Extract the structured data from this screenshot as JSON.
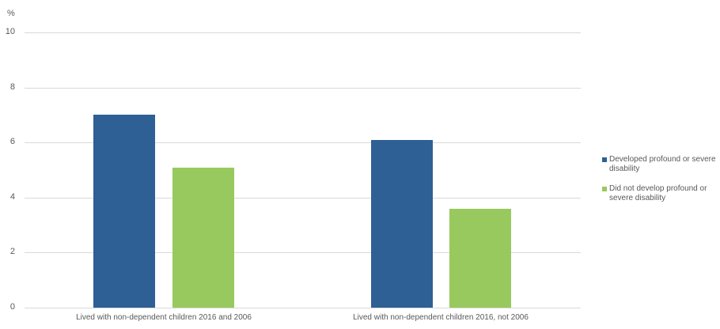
{
  "chart_data": {
    "type": "bar",
    "title": "",
    "xlabel": "",
    "ylabel": "%",
    "ylim": [
      0,
      10
    ],
    "yticks": [
      0,
      2,
      4,
      6,
      8,
      10
    ],
    "grid": true,
    "legend_position": "right",
    "categories": [
      "Lived with non-dependent children 2016 and 2006",
      "Lived with non-dependent children 2016, not 2006"
    ],
    "series": [
      {
        "name": "Developed profound or severe disability",
        "color": "#2e6095",
        "values": [
          7.0,
          6.1
        ]
      },
      {
        "name": "Did not develop profound or severe disability",
        "color": "#98c95e",
        "values": [
          5.1,
          3.6
        ]
      }
    ]
  },
  "axis": {
    "unit": "%",
    "ticks": [
      "10",
      "8",
      "6",
      "4",
      "2",
      "0"
    ]
  }
}
